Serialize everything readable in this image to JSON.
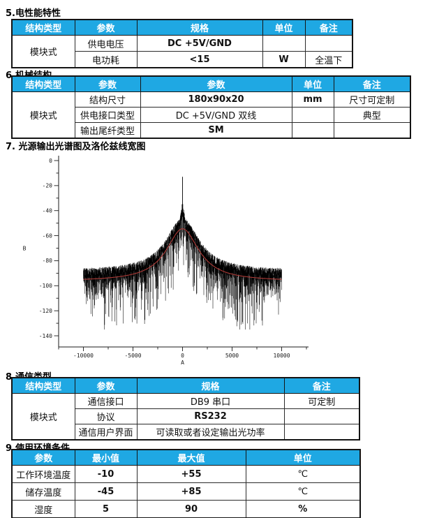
{
  "colors": {
    "header_bg": "#1fa8e3",
    "header_text": "#ffffff",
    "table_border": "#141414",
    "spectrum": "#000000",
    "fit_curve": "#ad3a36"
  },
  "page": {
    "sections": [
      {
        "id": "electrical",
        "heading": "5.电性能特性",
        "table": {
          "headers": [
            "结构类型",
            "参数",
            "规格",
            "单位",
            "备注"
          ],
          "group_label": "模块式",
          "rows": [
            [
              "供电电压",
              "DC +5V/GND",
              "",
              ""
            ],
            [
              "电功耗",
              "<15",
              "W",
              "全温下"
            ]
          ]
        }
      },
      {
        "id": "mechanical",
        "heading": "6.机械结构",
        "table": {
          "headers": [
            "结构类型",
            "参数",
            "参数",
            "单位",
            "备注"
          ],
          "group_label": "模块式",
          "rows": [
            [
              "结构尺寸",
              "180x90x20",
              "mm",
              "尺寸可定制"
            ],
            [
              "供电接口类型",
              "DC +5V/GND 双线",
              "",
              "典型"
            ],
            [
              "输出尾纤类型",
              "SM",
              "",
              ""
            ]
          ]
        }
      },
      {
        "id": "spectrum-figure",
        "heading": "7. 光源输出光谱图及洛伦兹线宽图"
      },
      {
        "id": "communication",
        "heading": "8.通信类型",
        "table": {
          "headers": [
            "结构类型",
            "参数",
            "规格",
            "备注"
          ],
          "group_label": "模块式",
          "rows": [
            [
              "通信接口",
              "DB9 串口",
              "可定制"
            ],
            [
              "协议",
              "RS232",
              ""
            ],
            [
              "通信用户界面",
              "可读取或者设定输出光功率",
              ""
            ]
          ]
        }
      },
      {
        "id": "environment",
        "heading": "9.使用环境条件",
        "table": {
          "headers": [
            "参数",
            "最小值",
            "最大值",
            "单位"
          ],
          "rows": [
            [
              "工作环境温度",
              "-10",
              "+55",
              "℃"
            ],
            [
              "储存温度",
              "-45",
              "+85",
              "℃"
            ],
            [
              "湿度",
              "5",
              "90",
              "%"
            ]
          ]
        }
      }
    ]
  },
  "chart_data": {
    "type": "line",
    "title": "",
    "xlabel": "A",
    "ylabel": "B",
    "xlim": [
      -12500,
      12500
    ],
    "ylim": [
      -149,
      2
    ],
    "x_ticks": [
      -10000,
      -5000,
      0,
      5000,
      10000
    ],
    "x_minor_step": 2500,
    "y_ticks": [
      0,
      -20,
      -40,
      -60,
      -80,
      -100,
      -120,
      -140
    ],
    "y_minor_step": 10,
    "grid": false,
    "legend": null,
    "series": [
      {
        "name": "measured optical spectrum (noisy)",
        "kind": "noisy-spectrum",
        "color": "#000000",
        "x_range": [
          -10000,
          10000
        ],
        "edge_top_db": -88,
        "edge_floor_db": -104,
        "deep_spike_db": -135,
        "envelope_offset_db": 9,
        "center_cluster_top_db": -34,
        "cluster_half_width": 480,
        "center_peak_db": -13,
        "min_depth_db": 4,
        "mean_depth_db": 12
      },
      {
        "name": "lorentzian linewidth fit",
        "kind": "smooth",
        "color": "#ad3a36",
        "peak_db": -54.5,
        "baseline_db": -96.5,
        "half_width": 2000
      }
    ]
  }
}
